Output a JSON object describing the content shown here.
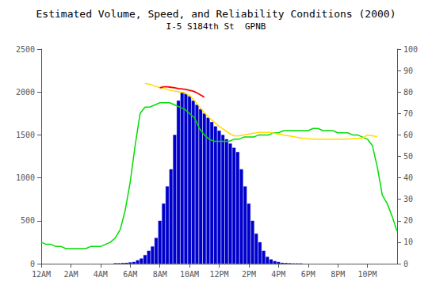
{
  "chart_data": {
    "type": "bar",
    "title": "Estimated Volume, Speed, and Reliability Conditions (2000)",
    "subtitle": "I-5 S184th St  GPNB",
    "xlim": [
      0,
      1440
    ],
    "xticks": [
      {
        "value": 0,
        "label": "12AM"
      },
      {
        "value": 120,
        "label": "2AM"
      },
      {
        "value": 240,
        "label": "4AM"
      },
      {
        "value": 360,
        "label": "6AM"
      },
      {
        "value": 480,
        "label": "8AM"
      },
      {
        "value": 600,
        "label": "10AM"
      },
      {
        "value": 720,
        "label": "12PM"
      },
      {
        "value": 840,
        "label": "2PM"
      },
      {
        "value": 960,
        "label": "4PM"
      },
      {
        "value": 1080,
        "label": "6PM"
      },
      {
        "value": 1200,
        "label": "8PM"
      },
      {
        "value": 1320,
        "label": "10PM"
      }
    ],
    "ylim": [
      0,
      2500
    ],
    "yticks": [
      0,
      500,
      1000,
      1500,
      2000,
      2500
    ],
    "y2lim": [
      0,
      100
    ],
    "y2ticks": [
      0,
      10,
      20,
      30,
      40,
      50,
      60,
      70,
      80,
      90,
      100
    ],
    "grid": false,
    "series": [
      {
        "type": "bar",
        "color": "#0000cc",
        "x": [
          300,
          315,
          330,
          345,
          360,
          375,
          390,
          405,
          420,
          435,
          450,
          465,
          480,
          495,
          510,
          525,
          540,
          555,
          570,
          585,
          600,
          615,
          630,
          645,
          660,
          675,
          690,
          705,
          720,
          735,
          750,
          765,
          780,
          795,
          810,
          825,
          840,
          855,
          870,
          885,
          900,
          915,
          930,
          945,
          960,
          975,
          990,
          1005,
          1020,
          1035,
          1050
        ],
        "values": [
          5,
          5,
          8,
          10,
          15,
          20,
          40,
          60,
          100,
          150,
          200,
          300,
          500,
          700,
          900,
          1100,
          1500,
          1900,
          2000,
          1980,
          1950,
          1900,
          1850,
          1800,
          1750,
          1700,
          1650,
          1600,
          1550,
          1500,
          1450,
          1400,
          1350,
          1300,
          1100,
          900,
          700,
          500,
          350,
          250,
          150,
          80,
          50,
          30,
          20,
          10,
          8,
          5,
          3,
          2,
          1
        ]
      },
      {
        "type": "line",
        "color": "#00dd00",
        "axis": "y2",
        "x": [
          0,
          20,
          40,
          60,
          80,
          100,
          120,
          140,
          160,
          180,
          200,
          220,
          240,
          260,
          280,
          300,
          320,
          340,
          360,
          380,
          400,
          420,
          440,
          460,
          480,
          500,
          520,
          540,
          560,
          580,
          600,
          620,
          640,
          660,
          680,
          700,
          720,
          740,
          760,
          780,
          800,
          820,
          840,
          860,
          880,
          900,
          920,
          940,
          960,
          980,
          1000,
          1020,
          1040,
          1060,
          1080,
          1100,
          1120,
          1140,
          1160,
          1180,
          1200,
          1220,
          1240,
          1260,
          1280,
          1300,
          1320,
          1340,
          1360,
          1380,
          1400,
          1420,
          1440
        ],
        "values": [
          10,
          9,
          9,
          8,
          8,
          7,
          7,
          7,
          7,
          7,
          8,
          8,
          8,
          9,
          10,
          12,
          16,
          25,
          38,
          55,
          70,
          73,
          73,
          74,
          75,
          75,
          75,
          74,
          73,
          72,
          70,
          68,
          63,
          60,
          58,
          57,
          57,
          57,
          57,
          58,
          58,
          59,
          59,
          59,
          60,
          60,
          60,
          61,
          61,
          62,
          62,
          62,
          62,
          62,
          62,
          63,
          63,
          62,
          62,
          62,
          61,
          61,
          61,
          60,
          60,
          59,
          58,
          55,
          45,
          32,
          28,
          22,
          15
        ]
      },
      {
        "type": "line",
        "color": "#ffdd00",
        "x": [
          420,
          440,
          460,
          480,
          500,
          520,
          540,
          560,
          580,
          600,
          620,
          640,
          660,
          680,
          700,
          720,
          740,
          760,
          780,
          800,
          820,
          840,
          860,
          880,
          900,
          920,
          940,
          960,
          980,
          1000,
          1020,
          1040,
          1060,
          1080,
          1100,
          1120,
          1140,
          1160,
          1180,
          1200,
          1220,
          1240,
          1260,
          1280,
          1300,
          1320,
          1340,
          1360
        ],
        "values": [
          2100,
          2090,
          2070,
          2050,
          2040,
          2020,
          2010,
          2000,
          1990,
          1960,
          1900,
          1830,
          1760,
          1700,
          1650,
          1600,
          1560,
          1520,
          1490,
          1490,
          1500,
          1510,
          1520,
          1530,
          1530,
          1530,
          1520,
          1510,
          1500,
          1490,
          1480,
          1470,
          1460,
          1455,
          1450,
          1450,
          1450,
          1450,
          1450,
          1450,
          1450,
          1450,
          1455,
          1460,
          1460,
          1500,
          1490,
          1480
        ]
      },
      {
        "type": "line",
        "color": "#ff0000",
        "x": [
          480,
          495,
          510,
          525,
          540,
          555,
          570,
          585,
          600,
          615,
          630,
          645,
          660
        ],
        "values": [
          2050,
          2060,
          2060,
          2055,
          2050,
          2040,
          2035,
          2030,
          2020,
          2010,
          1990,
          1965,
          1940
        ]
      }
    ]
  }
}
